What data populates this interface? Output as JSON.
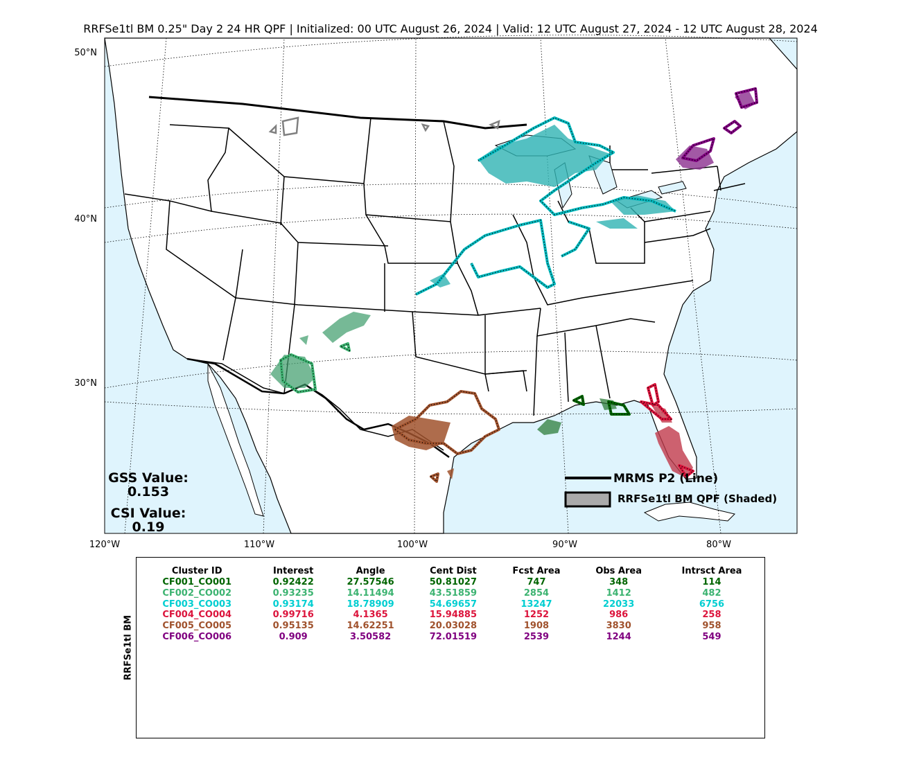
{
  "title": "RRFSe1tl BM 0.25\" Day 2 24 HR QPF | Initialized: 00 UTC August 26, 2024 | Valid: 12 UTC August 27, 2024 - 12 UTC August 28, 2024",
  "map": {
    "lat_labels": [
      "50°N",
      "40°N",
      "30°N"
    ],
    "lon_labels": [
      "120°W",
      "110°W",
      "100°W",
      "90°W",
      "80°W"
    ],
    "colors": {
      "water": "#dff4fd",
      "land": "#ffffff",
      "borders": "#000000"
    }
  },
  "legend": {
    "obs_label": "MRMS P2 (Line)",
    "fcst_label": "RRFSe1tl BM QPF (Shaded)",
    "fcst_swatch_color": "#aaaaaa"
  },
  "scores": {
    "gss_label": "GSS Value:",
    "gss_value": "0.153",
    "csi_label": "CSI Value:",
    "csi_value": "0.19"
  },
  "table": {
    "side_label": "RRFSe1tl BM",
    "headers": [
      "Cluster ID",
      "Interest",
      "Angle",
      "Cent Dist",
      "Fcst Area",
      "Obs Area",
      "Intrsct Area"
    ],
    "rows": [
      {
        "color": "#006400",
        "cells": [
          "CF001_CO001",
          "0.92422",
          "27.57546",
          "50.81027",
          "747",
          "348",
          "114"
        ]
      },
      {
        "color": "#3cb371",
        "cells": [
          "CF002_CO002",
          "0.93235",
          "14.11494",
          "43.51859",
          "2854",
          "1412",
          "482"
        ]
      },
      {
        "color": "#00ced1",
        "cells": [
          "CF003_CO003",
          "0.93174",
          "18.78909",
          "54.69657",
          "13247",
          "22033",
          "6756"
        ]
      },
      {
        "color": "#dc143c",
        "cells": [
          "CF004_CO004",
          "0.99716",
          "4.1365",
          "15.94885",
          "1252",
          "986",
          "258"
        ]
      },
      {
        "color": "#a0522d",
        "cells": [
          "CF005_CO005",
          "0.95135",
          "14.62251",
          "20.03028",
          "1908",
          "3830",
          "958"
        ]
      },
      {
        "color": "#800080",
        "cells": [
          "CF006_CO006",
          "0.909",
          "3.50582",
          "72.01519",
          "2539",
          "1244",
          "549"
        ]
      }
    ]
  }
}
